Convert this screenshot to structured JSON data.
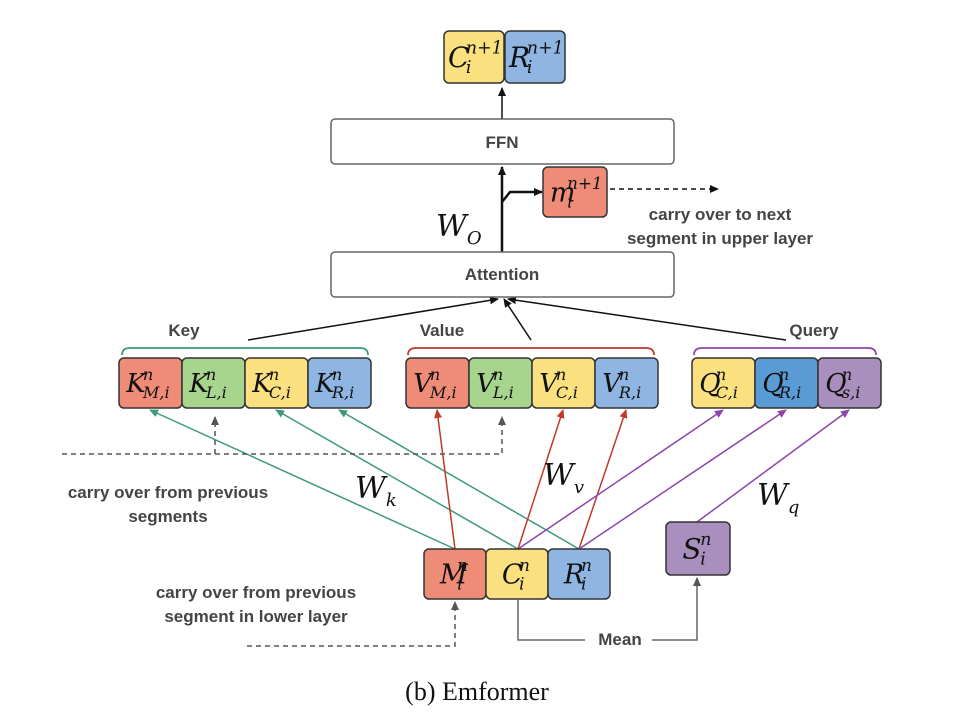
{
  "caption": "(b) Emformer",
  "colors": {
    "red": "#ef8c78",
    "green": "#a8d58d",
    "yellow": "#fbe080",
    "blue": "#8fb6e3",
    "blue_dark": "#5b9bd5",
    "purple": "#a98fbd",
    "edge_green": "#3d9a7a",
    "edge_red": "#c0392b",
    "edge_purple": "#8e44ad",
    "brace_green": "#3d9a7a",
    "brace_red": "#c0392b",
    "brace_purple": "#8e44ad"
  },
  "blocks": {
    "ffn": "FFN",
    "attention": "Attention"
  },
  "labels": {
    "key": "Key",
    "value": "Value",
    "query": "Query",
    "mean": "Mean",
    "carry_next_line1": "carry over to next",
    "carry_next_line2": "segment in upper layer",
    "carry_prev_segments_line1": "carry over from previous",
    "carry_prev_segments_line2": "segments",
    "carry_prev_lower_line1": "carry over from previous",
    "carry_prev_lower_line2": "segment in lower layer"
  },
  "weights": {
    "wo": {
      "base": "W",
      "sub": "O"
    },
    "wk": {
      "base": "W",
      "sub": "k"
    },
    "wv": {
      "base": "W",
      "sub": "v"
    },
    "wq": {
      "base": "W",
      "sub": "q"
    }
  },
  "top_outputs": [
    {
      "base": "C",
      "sup": "n+1",
      "sub": "i",
      "color": "yellow"
    },
    {
      "base": "R",
      "sup": "n+1",
      "sub": "i",
      "color": "blue"
    }
  ],
  "memory_out": {
    "base": "m",
    "sup": "n+1",
    "sub": "i",
    "color": "red"
  },
  "keys": [
    {
      "base": "K",
      "sup": "n",
      "sub": "M,i",
      "color": "red"
    },
    {
      "base": "K",
      "sup": "n",
      "sub": "L,i",
      "color": "green"
    },
    {
      "base": "K",
      "sup": "n",
      "sub": "C,i",
      "color": "yellow"
    },
    {
      "base": "K",
      "sup": "n",
      "sub": "R,i",
      "color": "blue"
    }
  ],
  "values": [
    {
      "base": "V",
      "sup": "n",
      "sub": "M,i",
      "color": "red"
    },
    {
      "base": "V",
      "sup": "n",
      "sub": "L,i",
      "color": "green"
    },
    {
      "base": "V",
      "sup": "n",
      "sub": "C,i",
      "color": "yellow"
    },
    {
      "base": "V",
      "sup": "n",
      "sub": "R,i",
      "color": "blue"
    }
  ],
  "queries": [
    {
      "base": "Q",
      "sup": "n",
      "sub": "C,i",
      "color": "yellow"
    },
    {
      "base": "Q",
      "sup": "n",
      "sub": "R,i",
      "color": "blue_dark"
    },
    {
      "base": "Q",
      "sup": "n",
      "sub": "s,i",
      "color": "purple"
    }
  ],
  "inputs": [
    {
      "base": "M",
      "sup": "n",
      "sub": "i",
      "color": "red"
    },
    {
      "base": "C",
      "sup": "n",
      "sub": "i",
      "color": "yellow"
    },
    {
      "base": "R",
      "sup": "n",
      "sub": "i",
      "color": "blue"
    }
  ],
  "summary": {
    "base": "S",
    "sup": "n",
    "sub": "i",
    "color": "purple"
  }
}
